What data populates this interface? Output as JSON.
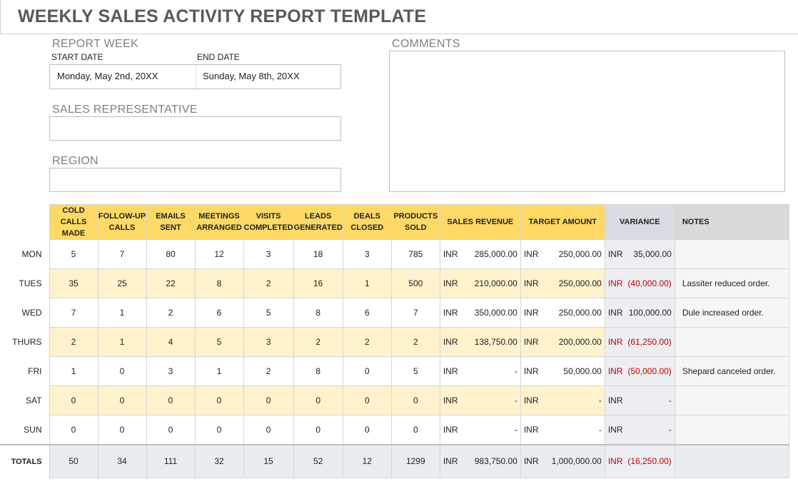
{
  "title": "WEEKLY SALES ACTIVITY REPORT TEMPLATE",
  "report_week": {
    "label": "REPORT WEEK",
    "start_label": "START DATE",
    "end_label": "END DATE",
    "start_value": "Monday, May 2nd, 20XX",
    "end_value": "Sunday, May 8th, 20XX"
  },
  "sales_rep": {
    "label": "SALES REPRESENTATIVE",
    "value": ""
  },
  "region": {
    "label": "REGION",
    "value": ""
  },
  "comments": {
    "label": "COMMENTS",
    "value": ""
  },
  "columns": {
    "cold_calls": "COLD CALLS MADE",
    "follow_up": "FOLLOW-UP CALLS",
    "emails": "EMAILS SENT",
    "meetings": "MEETINGS ARRANGED",
    "visits": "VISITS COMPLETED",
    "leads": "LEADS GENERATED",
    "deals": "DEALS CLOSED",
    "products": "PRODUCTS SOLD",
    "revenue": "SALES REVENUE",
    "target": "TARGET AMOUNT",
    "variance": "VARIANCE",
    "notes": "NOTES"
  },
  "rows": [
    {
      "day": "MON",
      "cold": "5",
      "follow": "7",
      "emails": "80",
      "meetings": "12",
      "visits": "3",
      "leads": "18",
      "deals": "3",
      "products": "785",
      "rev_cur": "INR",
      "rev": "285,000.00",
      "tgt_cur": "INR",
      "tgt": "250,000.00",
      "var_cur": "INR",
      "var": "35,000.00",
      "notes": ""
    },
    {
      "day": "TUES",
      "cold": "35",
      "follow": "25",
      "emails": "22",
      "meetings": "8",
      "visits": "2",
      "leads": "16",
      "deals": "1",
      "products": "500",
      "rev_cur": "INR",
      "rev": "210,000.00",
      "tgt_cur": "INR",
      "tgt": "250,000.00",
      "var_cur": "INR",
      "var": "(40,000.00)",
      "notes": "Lassiter reduced order."
    },
    {
      "day": "WED",
      "cold": "7",
      "follow": "1",
      "emails": "2",
      "meetings": "6",
      "visits": "5",
      "leads": "8",
      "deals": "6",
      "products": "7",
      "rev_cur": "INR",
      "rev": "350,000.00",
      "tgt_cur": "INR",
      "tgt": "250,000.00",
      "var_cur": "INR",
      "var": "100,000.00",
      "notes": "Dule increased order."
    },
    {
      "day": "THURS",
      "cold": "2",
      "follow": "1",
      "emails": "4",
      "meetings": "5",
      "visits": "3",
      "leads": "2",
      "deals": "2",
      "products": "2",
      "rev_cur": "INR",
      "rev": "138,750.00",
      "tgt_cur": "INR",
      "tgt": "200,000.00",
      "var_cur": "INR",
      "var": "(61,250.00)",
      "notes": ""
    },
    {
      "day": "FRI",
      "cold": "1",
      "follow": "0",
      "emails": "3",
      "meetings": "1",
      "visits": "2",
      "leads": "8",
      "deals": "0",
      "products": "5",
      "rev_cur": "INR",
      "rev": "-",
      "tgt_cur": "INR",
      "tgt": "50,000.00",
      "var_cur": "INR",
      "var": "(50,000.00)",
      "notes": "Shepard canceled order."
    },
    {
      "day": "SAT",
      "cold": "0",
      "follow": "0",
      "emails": "0",
      "meetings": "0",
      "visits": "0",
      "leads": "0",
      "deals": "0",
      "products": "0",
      "rev_cur": "INR",
      "rev": "-",
      "tgt_cur": "INR",
      "tgt": "-",
      "var_cur": "INR",
      "var": "-",
      "notes": ""
    },
    {
      "day": "SUN",
      "cold": "0",
      "follow": "0",
      "emails": "0",
      "meetings": "0",
      "visits": "0",
      "leads": "0",
      "deals": "0",
      "products": "0",
      "rev_cur": "INR",
      "rev": "-",
      "tgt_cur": "INR",
      "tgt": "-",
      "var_cur": "INR",
      "var": "-",
      "notes": ""
    }
  ],
  "totals": {
    "day": "TOTALS",
    "cold": "50",
    "follow": "34",
    "emails": "111",
    "meetings": "32",
    "visits": "15",
    "leads": "52",
    "deals": "12",
    "products": "1299",
    "rev_cur": "INR",
    "rev": "983,750.00",
    "tgt_cur": "INR",
    "tgt": "1,000,000.00",
    "var_cur": "INR",
    "var": "(16,250.00)",
    "notes": ""
  },
  "colors": {
    "header_yellow": "#ffd966",
    "alt_row": "#fff2cc",
    "negative": "#c00000",
    "title": "#595959"
  }
}
